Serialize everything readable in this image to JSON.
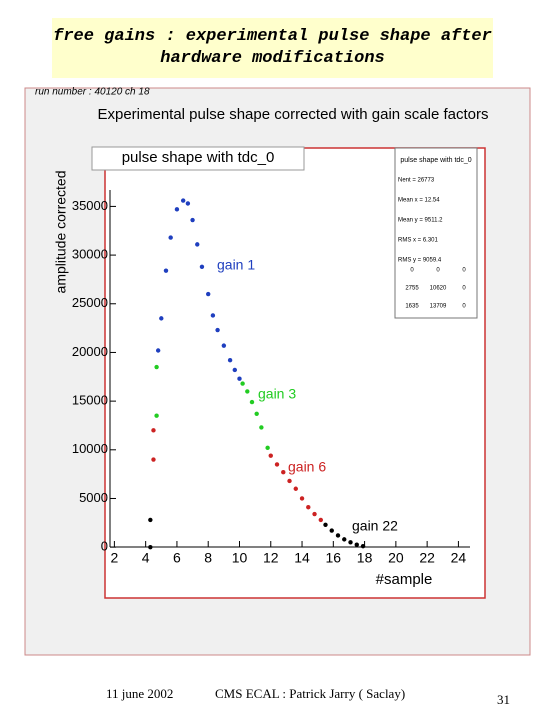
{
  "slide": {
    "title": "free gains : experimental pulse shape after hardware modifications",
    "footer": {
      "date": "11 june 2002",
      "author": "CMS ECAL : Patrick Jarry ( Saclay)",
      "page": 31
    }
  },
  "chart_data": {
    "type": "scatter",
    "run_label": "run number : 40120 ch 18",
    "title": "Experimental pulse shape corrected with gain scale factors",
    "subtitle": "pulse shape with tdc_0",
    "y_label": "amplitude corrected",
    "x_label": "#sample",
    "xlim": [
      1.4,
      25.7
    ],
    "ylim": [
      -600,
      41000
    ],
    "xticks": [
      2,
      4,
      6,
      8,
      10,
      12,
      14,
      16,
      18,
      20,
      22,
      24
    ],
    "yticks": [
      0,
      5000,
      10000,
      15000,
      20000,
      25000,
      30000,
      35000
    ],
    "series": [
      {
        "name": "gain 1",
        "color": "#1f3fbf",
        "x": [
          4.8,
          5.0,
          5.3,
          5.6,
          6.0,
          6.4,
          6.7,
          7.0,
          7.3,
          7.6,
          8.0,
          8.3,
          8.6,
          9.0,
          9.4,
          9.7,
          10.0
        ],
        "values": [
          20200,
          23500,
          28400,
          31800,
          34700,
          35600,
          35300,
          33600,
          31100,
          28800,
          26000,
          23800,
          22300,
          20700,
          19200,
          18200,
          17300
        ]
      },
      {
        "name": "gain 3",
        "color": "#22cc22",
        "x": [
          4.7,
          4.7,
          10.2,
          10.5,
          10.8,
          11.1,
          11.4,
          11.8
        ],
        "values": [
          13500,
          18500,
          16800,
          16000,
          14900,
          13700,
          12300,
          10200
        ]
      },
      {
        "name": "gain 6",
        "color": "#cc2222",
        "x": [
          4.5,
          4.5,
          12.0,
          12.4,
          12.8,
          13.2,
          13.6,
          14.0,
          14.4,
          14.8,
          15.2
        ],
        "values": [
          9000,
          12000,
          9400,
          8500,
          7700,
          6800,
          6000,
          5000,
          4100,
          3400,
          2800
        ]
      },
      {
        "name": "gain 22",
        "color": "#000000",
        "x": [
          4.3,
          4.3,
          15.5,
          15.9,
          16.3,
          16.7,
          17.1,
          17.5,
          17.9
        ],
        "values": [
          0,
          2800,
          2300,
          1700,
          1200,
          800,
          500,
          250,
          100
        ]
      }
    ],
    "stats": {
      "title": "pulse shape with tdc_0",
      "lines": [
        "Nent = 26773",
        "Mean x = 12.54",
        "Mean y = 9511.2",
        "RMS x = 6.301",
        "RMS y = 9059.4"
      ],
      "grid": [
        [
          0,
          0,
          0
        ],
        [
          2755,
          10620,
          0
        ],
        [
          1635,
          13709,
          0
        ]
      ]
    }
  }
}
